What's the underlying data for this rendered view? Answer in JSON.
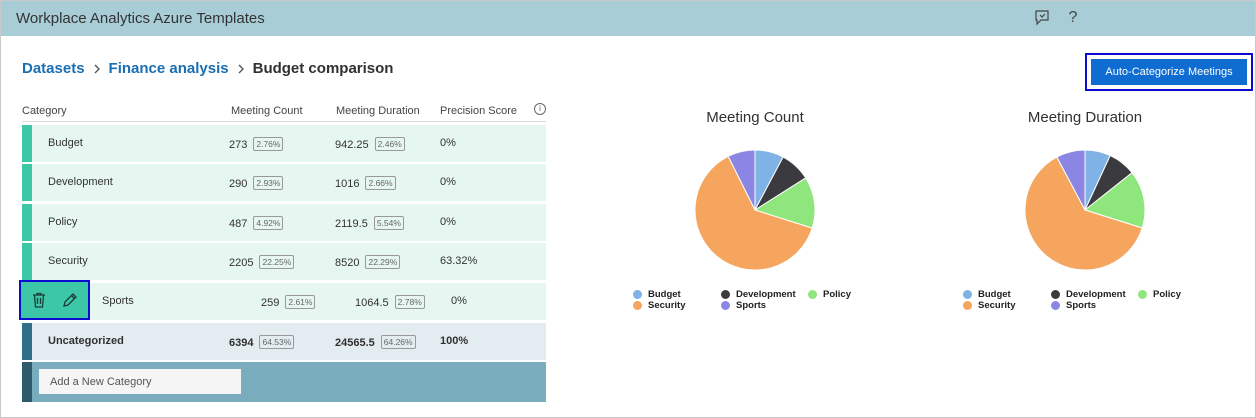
{
  "header": {
    "title": "Workplace Analytics Azure Templates",
    "help_label": "?"
  },
  "breadcrumb": {
    "items": [
      "Datasets",
      "Finance analysis"
    ],
    "current": "Budget comparison"
  },
  "actions": {
    "auto_categorize": "Auto-Categorize Meetings"
  },
  "table": {
    "headers": {
      "category": "Category",
      "meeting_count": "Meeting Count",
      "meeting_duration": "Meeting Duration",
      "precision_score": "Precision Score",
      "info": "i"
    },
    "rows": [
      {
        "name": "Budget",
        "count": "273",
        "count_pct": "2.76%",
        "duration": "942.25",
        "duration_pct": "2.46%",
        "precision": "0%"
      },
      {
        "name": "Development",
        "count": "290",
        "count_pct": "2.93%",
        "duration": "1016",
        "duration_pct": "2.66%",
        "precision": "0%"
      },
      {
        "name": "Policy",
        "count": "487",
        "count_pct": "4.92%",
        "duration": "2119.5",
        "duration_pct": "5.54%",
        "precision": "0%"
      },
      {
        "name": "Security",
        "count": "2205",
        "count_pct": "22.25%",
        "duration": "8520",
        "duration_pct": "22.29%",
        "precision": "63.32%"
      },
      {
        "name": "Sports",
        "count": "259",
        "count_pct": "2.61%",
        "duration": "1064.5",
        "duration_pct": "2.78%",
        "precision": "0%"
      }
    ],
    "uncategorized": {
      "name": "Uncategorized",
      "count": "6394",
      "count_pct": "64.53%",
      "duration": "24565.5",
      "duration_pct": "64.26%",
      "precision": "100%"
    },
    "add_placeholder": "Add a New Category"
  },
  "colors": {
    "Budget": "#7fb2e5",
    "Development": "#3b3a3f",
    "Policy": "#8ee67c",
    "Security": "#f5a55e",
    "Sports": "#8b86e4",
    "Uncategorized": "#f5a55e"
  },
  "chart_data": [
    {
      "type": "pie",
      "title": "Meeting Count",
      "categories": [
        "Budget",
        "Development",
        "Policy",
        "Security",
        "Sports"
      ],
      "values": [
        273,
        290,
        487,
        2205,
        259
      ],
      "legend": [
        "Budget",
        "Development",
        "Policy",
        "Security",
        "Sports"
      ]
    },
    {
      "type": "pie",
      "title": "Meeting Duration",
      "categories": [
        "Budget",
        "Development",
        "Policy",
        "Security",
        "Sports"
      ],
      "values": [
        942.25,
        1016,
        2119.5,
        8520,
        1064.5
      ],
      "legend": [
        "Budget",
        "Development",
        "Policy",
        "Security",
        "Sports"
      ]
    }
  ]
}
